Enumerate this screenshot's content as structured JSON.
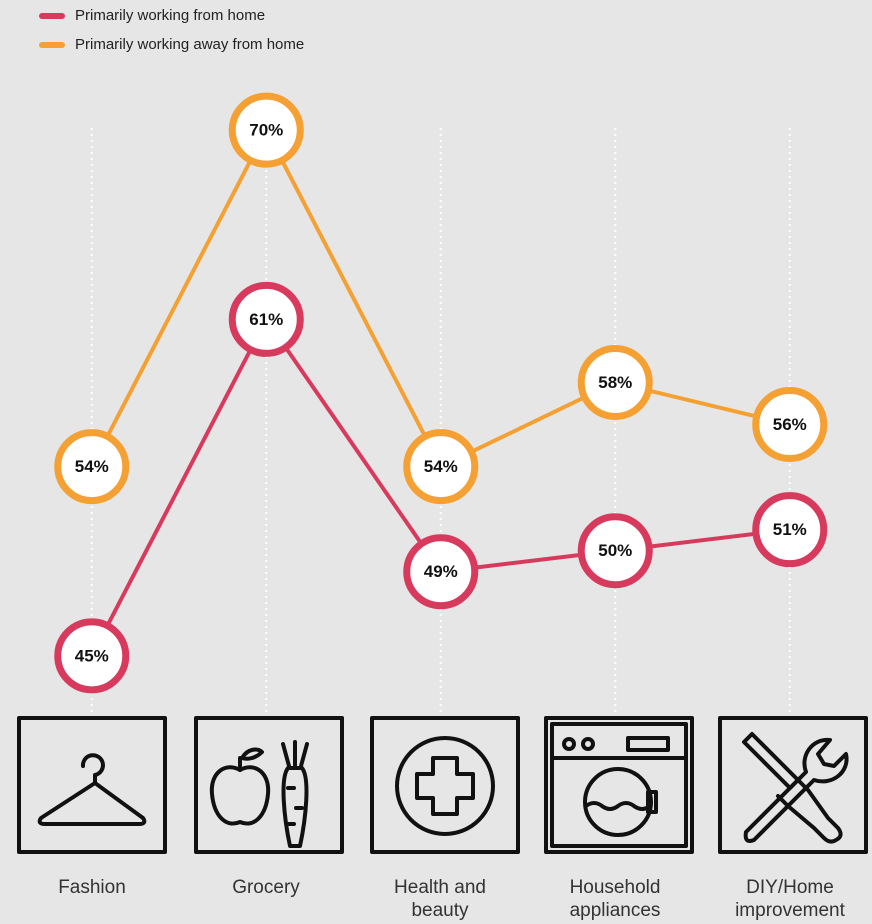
{
  "chart_data": {
    "type": "line",
    "categories": [
      "Fashion",
      "Grocery",
      "Health and beauty",
      "Household appliances",
      "DIY/Home improvement"
    ],
    "series": [
      {
        "name": "Primarily working from home",
        "color": "#d83a5e",
        "values": [
          45,
          61,
          49,
          50,
          51
        ],
        "value_labels": [
          "45%",
          "61%",
          "49%",
          "50%",
          "51%"
        ]
      },
      {
        "name": "Primarily working away from home",
        "color": "#f5a033",
        "values": [
          54,
          70,
          54,
          58,
          56
        ],
        "value_labels": [
          "54%",
          "70%",
          "54%",
          "58%",
          "56%"
        ]
      }
    ],
    "ylim": [
      40,
      75
    ]
  }
}
